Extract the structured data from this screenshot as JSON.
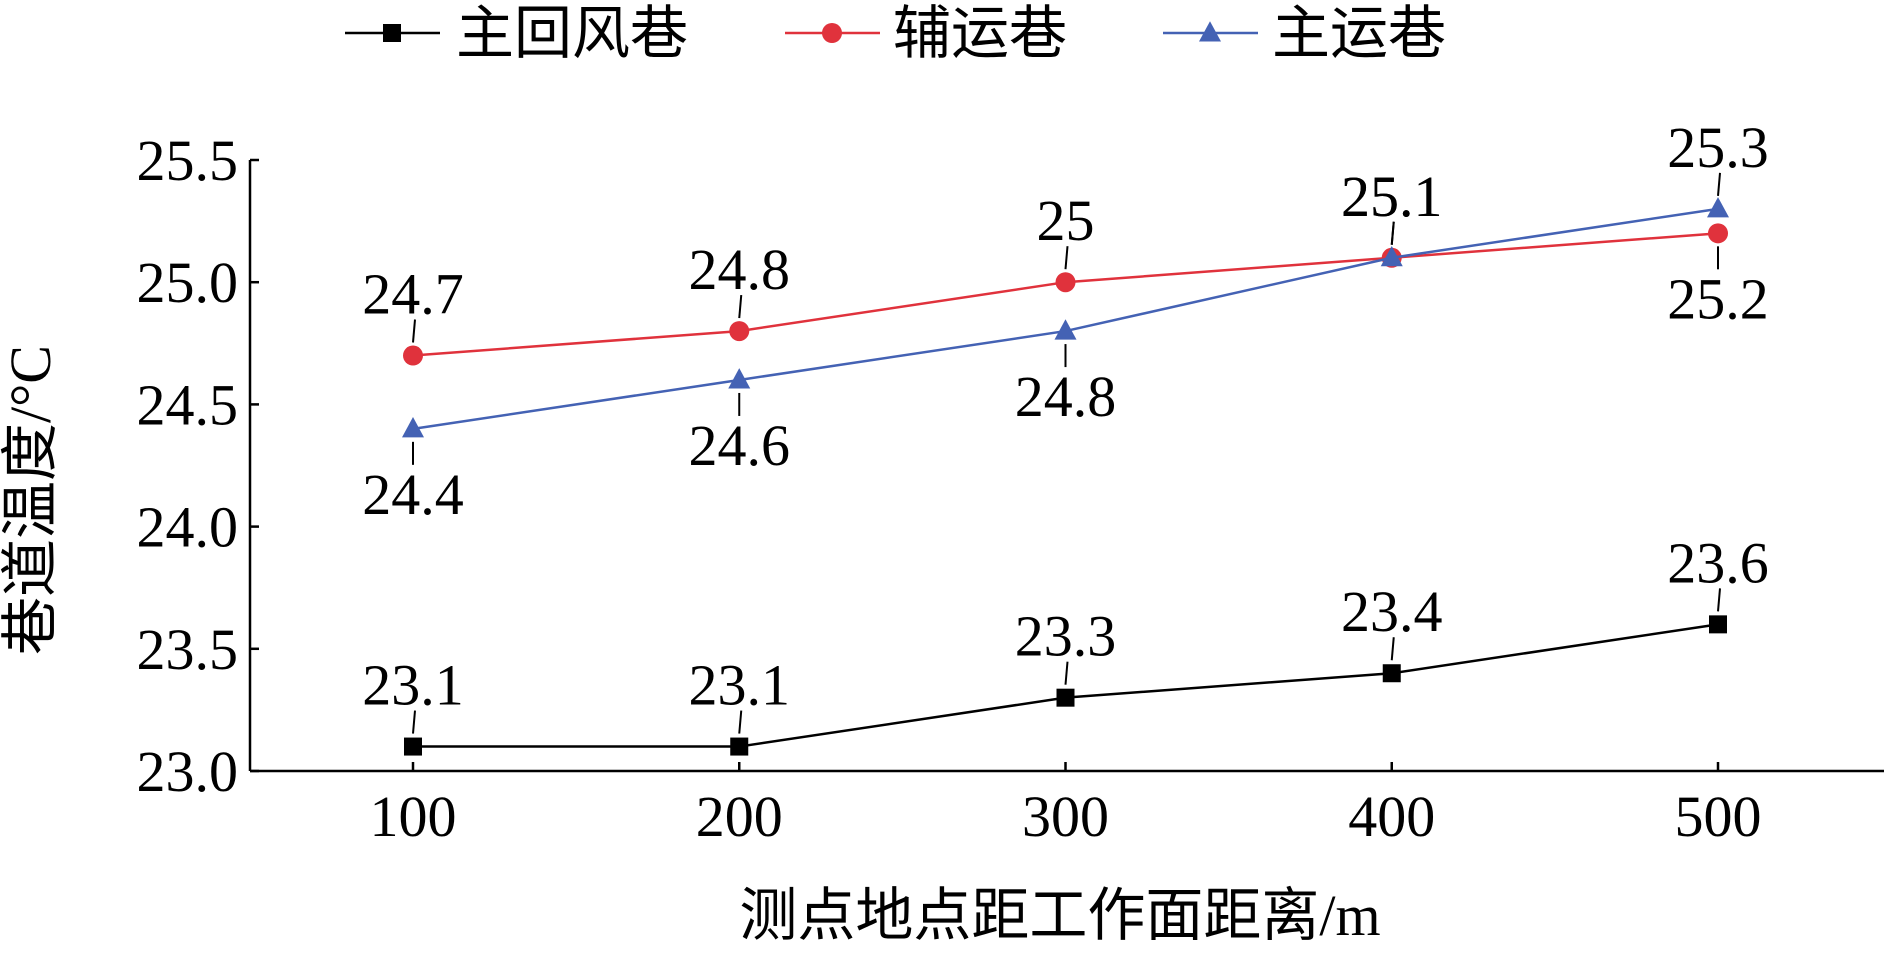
{
  "chart_data": {
    "type": "line",
    "x": [
      100,
      200,
      300,
      400,
      500
    ],
    "xlabel": "测点地点距工作面距离/m",
    "ylabel": "巷道温度/°C",
    "ylim": [
      23.0,
      25.5
    ],
    "yticks": [
      "23.0",
      "23.5",
      "24.0",
      "24.5",
      "25.0",
      "25.5"
    ],
    "xticks": [
      "100",
      "200",
      "300",
      "400",
      "500"
    ],
    "grid": false,
    "legend_position": "top",
    "series": [
      {
        "name": "主回风巷",
        "color": "#000000",
        "marker": "square",
        "values": [
          23.1,
          23.1,
          23.3,
          23.4,
          23.6
        ],
        "labels": [
          "23.1",
          "23.1",
          "23.3",
          "23.4",
          "23.6"
        ]
      },
      {
        "name": "辅运巷",
        "color": "#e0323c",
        "marker": "circle",
        "values": [
          24.7,
          24.8,
          25.0,
          25.1,
          25.2
        ],
        "labels": [
          "24.7",
          "24.8",
          "25",
          "25.1",
          "25.2"
        ]
      },
      {
        "name": "主运巷",
        "color": "#4462b4",
        "marker": "triangle",
        "values": [
          24.4,
          24.6,
          24.8,
          25.1,
          25.3
        ],
        "labels": [
          "24.4",
          "24.6",
          "24.8",
          "25.1",
          "25.3"
        ]
      }
    ]
  }
}
